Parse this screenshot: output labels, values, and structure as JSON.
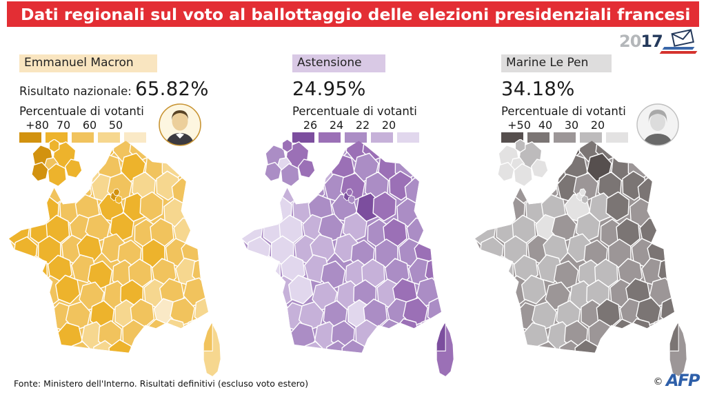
{
  "title": "Dati regionali sul voto al ballottaggio delle elezioni presidenziali francesi",
  "logo2017": {
    "year_prefix": "20",
    "year_suffix": "17",
    "icon": "envelope-icon",
    "navy": "#24395b",
    "gray": "#b4b7ba",
    "flag_blue": "#3a67a9",
    "flag_red": "#d5332e"
  },
  "colors": {
    "header_red": "#e32e34",
    "text": "#1a1a1a",
    "afp_blue": "#2e5fa9"
  },
  "footer": {
    "source": "Fonte: Ministero dell'Interno. Risultati definitivi (escluso voto estero)",
    "copyright": "©",
    "agency": "AFP"
  },
  "maps": [
    {
      "id": "macron",
      "label": "Emmanuel Macron",
      "label_bg": "#f9e5c0",
      "result_prefix": "Risultato nazionale: ",
      "result": "65.82%",
      "legend_title": "Percentuale di votanti",
      "ticks": [
        "+80",
        "70",
        "60",
        "50"
      ],
      "palette": [
        "#d2920f",
        "#edb32c",
        "#f1c35d",
        "#f6d78f",
        "#fae9c6"
      ],
      "has_photo": true,
      "photo_name": "macron-portrait",
      "cells": [
        "2222122333",
        "2223212332",
        "1222323323",
        "2122112333",
        "1112212233",
        "1121221223",
        "2112122232",
        "2212213222",
        "2122132423",
        "2213222332",
        "2122312233"
      ],
      "corsica": [
        2,
        3
      ],
      "inset": [
        1,
        0,
        2,
        1,
        0,
        1,
        1
      ],
      "paris": [
        0,
        1,
        0
      ]
    },
    {
      "id": "astensione",
      "label": "Astensione",
      "label_bg": "#d9c9e5",
      "result_prefix": "",
      "result": "24.95%",
      "legend_title": "Percentuale di votanti",
      "ticks": [
        "26",
        "24",
        "22",
        "20"
      ],
      "palette": [
        "#7c4e9e",
        "#9b70b6",
        "#ab8dc5",
        "#c6b1d9",
        "#e1d7ed"
      ],
      "has_photo": false,
      "photo_name": "",
      "cells": [
        "3332211112",
        "3323121211",
        "4332212121",
        "3432201212",
        "4443232122",
        "4433322212",
        "3443233221",
        "3343323122",
        "3233242212",
        "3323232111",
        "3233221211"
      ],
      "corsica": [
        0,
        1
      ],
      "inset": [
        1,
        2,
        4,
        2,
        2,
        1,
        1
      ],
      "paris": [
        0,
        2,
        1
      ]
    },
    {
      "id": "lepen",
      "label": "Marine Le Pen",
      "label_bg": "#dedddd",
      "result_prefix": "",
      "result": "34.18%",
      "legend_title": "Percentuale di votanti",
      "ticks": [
        "+50",
        "40",
        "30",
        "20"
      ],
      "palette": [
        "#564f4e",
        "#7b7574",
        "#9c9697",
        "#bdbbbc",
        "#e3e2e2"
      ],
      "has_photo": true,
      "photo_name": "lepen-portrait",
      "cells": [
        "3332011122",
        "3331101211",
        "3322121111",
        "3233431211",
        "3334232112",
        "3323322211",
        "2333233221",
        "3232332122",
        "2323321211",
        "2233221121",
        "3232211211"
      ],
      "corsica": [
        1,
        2
      ],
      "inset": [
        3,
        4,
        4,
        4,
        4,
        4,
        3
      ],
      "paris": [
        4,
        3,
        4
      ]
    }
  ]
}
